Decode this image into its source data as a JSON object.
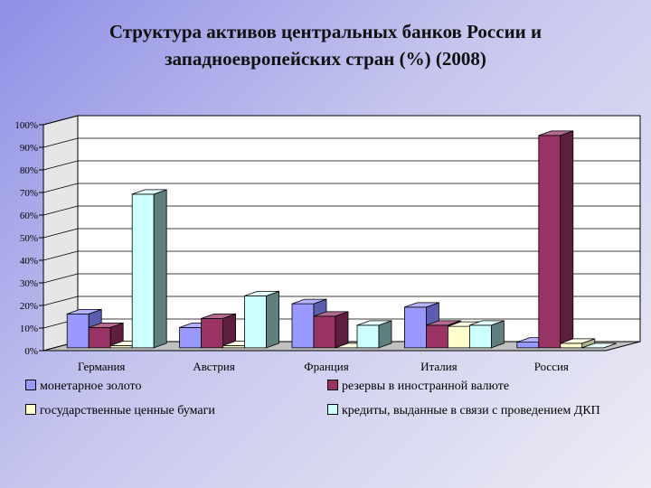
{
  "title_lines": [
    "Структура активов центральных банков России и",
    "западноевропейских стран (%) (2008)"
  ],
  "chart_data": {
    "type": "bar",
    "categories": [
      "Германия",
      "Австрия",
      "Франция",
      "Италия",
      "Россия"
    ],
    "series": [
      {
        "name": "монетарное золото",
        "values": [
          15,
          9,
          19.5,
          18,
          2.5
        ]
      },
      {
        "name": "резервы в иностранной валюте",
        "values": [
          9,
          13,
          14,
          10,
          94
        ]
      },
      {
        "name": "государственные ценные бумаги",
        "values": [
          1,
          1,
          0,
          9.5,
          2
        ]
      },
      {
        "name": "кредиты, выданные в связи с проведением ДКП",
        "values": [
          68,
          23,
          10,
          10,
          0
        ]
      }
    ],
    "y_ticks": [
      "0%",
      "10%",
      "20%",
      "30%",
      "40%",
      "50%",
      "60%",
      "70%",
      "80%",
      "90%",
      "100%"
    ],
    "ylim": [
      0,
      100
    ],
    "title": "Структура активов центральных банков России и западноевропейских стран (%) (2008)",
    "xlabel": "",
    "ylabel": "",
    "grid": true,
    "legend_position": "bottom",
    "colors": {
      "series": [
        "#9999ff",
        "#993366",
        "#ffffcc",
        "#ccffff"
      ],
      "front": [
        "#9999ff",
        "#993366",
        "#ffffcc",
        "#ccffff"
      ],
      "top": [
        "#b3b3ff",
        "#b36b8f",
        "#ffffe6",
        "#e6ffff"
      ],
      "side": [
        "#5c5cb0",
        "#5e1f3f",
        "#b3b38f",
        "#5f7f7f"
      ],
      "wall": "#ffffff",
      "floor": "#c0c0c0"
    }
  }
}
